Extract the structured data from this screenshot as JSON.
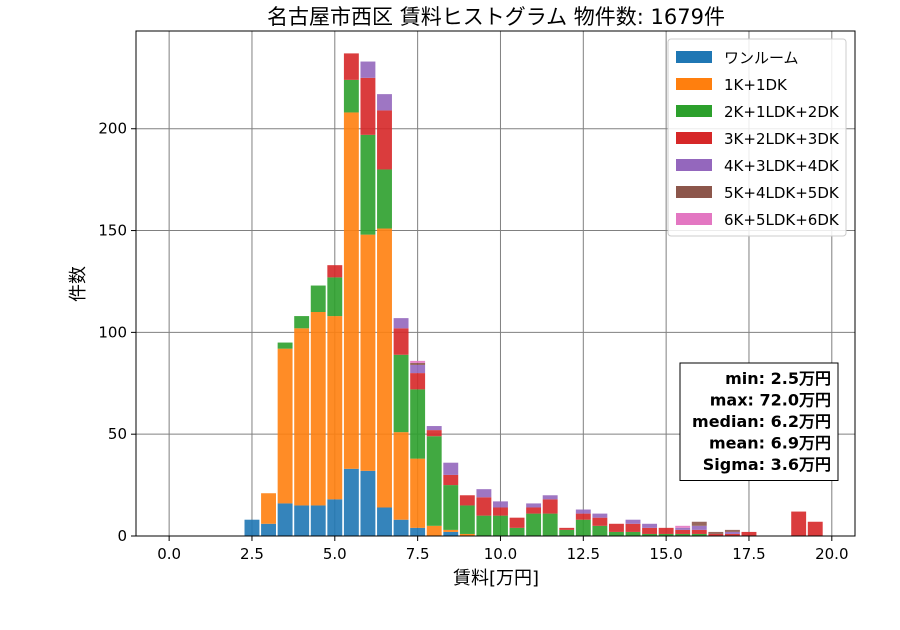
{
  "chart_data": {
    "type": "bar",
    "stacked": true,
    "title": "名古屋市西区 賃料ヒストグラム 物件数: 1679件",
    "xlabel": "賃料[万円]",
    "ylabel": "件数",
    "xlim": [
      -1.0,
      20.7
    ],
    "ylim": [
      0,
      248
    ],
    "xticks": [
      0.0,
      2.5,
      5.0,
      7.5,
      10.0,
      12.5,
      15.0,
      17.5,
      20.0
    ],
    "xtick_labels": [
      "0.0",
      "2.5",
      "5.0",
      "7.5",
      "10.0",
      "12.5",
      "15.0",
      "17.5",
      "20.0"
    ],
    "yticks": [
      0,
      50,
      100,
      150,
      200
    ],
    "ytick_labels": [
      "0",
      "50",
      "100",
      "150",
      "200"
    ],
    "grid": true,
    "legend_position": "top-right",
    "bin_width": 0.5,
    "x": [
      2.5,
      3.0,
      3.5,
      4.0,
      4.5,
      5.0,
      5.5,
      6.0,
      6.5,
      7.0,
      7.5,
      8.0,
      8.5,
      9.0,
      9.5,
      10.0,
      10.5,
      11.0,
      11.5,
      12.0,
      12.5,
      13.0,
      13.5,
      14.0,
      14.5,
      15.0,
      15.5,
      16.0,
      16.5,
      17.0,
      17.5,
      18.0,
      18.5,
      19.0,
      19.5
    ],
    "series": [
      {
        "name": "ワンルーム",
        "color": "#1f77b4",
        "values": [
          8,
          6,
          16,
          15,
          15,
          18,
          33,
          32,
          14,
          8,
          4,
          0,
          2,
          0,
          0,
          0,
          0,
          0,
          0,
          0,
          0,
          0,
          0,
          0,
          0,
          0,
          0,
          0,
          0,
          0,
          0,
          0,
          0,
          0,
          0
        ]
      },
      {
        "name": "1K+1DK",
        "color": "#ff7f0e",
        "values": [
          0,
          15,
          76,
          87,
          95,
          90,
          175,
          116,
          137,
          43,
          34,
          5,
          1,
          1,
          0,
          0,
          0,
          0,
          0,
          0,
          0,
          0,
          0,
          0,
          0,
          0,
          0,
          0,
          0,
          0,
          0,
          0,
          0,
          0,
          0
        ]
      },
      {
        "name": "2K+1LDK+2DK",
        "color": "#2ca02c",
        "values": [
          0,
          0,
          3,
          6,
          13,
          19,
          16,
          49,
          29,
          38,
          34,
          44,
          22,
          14,
          10,
          10,
          4,
          11,
          11,
          3,
          8,
          5,
          2,
          2,
          1,
          1,
          1,
          1,
          0,
          0,
          0,
          0,
          0,
          0,
          0
        ]
      },
      {
        "name": "3K+2LDK+3DK",
        "color": "#d62728",
        "values": [
          0,
          0,
          0,
          0,
          0,
          6,
          13,
          28,
          29,
          13,
          8,
          3,
          5,
          5,
          9,
          4,
          5,
          3,
          7,
          1,
          3,
          4,
          4,
          4,
          3,
          3,
          2,
          2,
          1,
          1,
          2,
          0,
          0,
          12,
          7
        ]
      },
      {
        "name": "4K+3LDK+4DK",
        "color": "#9467bd",
        "values": [
          0,
          0,
          0,
          0,
          0,
          0,
          0,
          8,
          8,
          5,
          4,
          2,
          6,
          0,
          4,
          3,
          0,
          2,
          2,
          0,
          2,
          2,
          0,
          2,
          2,
          0,
          1,
          2,
          0,
          1,
          0,
          0,
          0,
          0,
          0
        ]
      },
      {
        "name": "5K+4LDK+5DK",
        "color": "#8c564b",
        "values": [
          0,
          0,
          0,
          0,
          0,
          0,
          0,
          0,
          0,
          0,
          1,
          0,
          0,
          0,
          0,
          0,
          0,
          0,
          0,
          0,
          0,
          0,
          0,
          0,
          0,
          0,
          0,
          2,
          1,
          1,
          0,
          0,
          0,
          0,
          0
        ]
      },
      {
        "name": "6K+5LDK+6DK",
        "color": "#e377c2",
        "values": [
          0,
          0,
          0,
          0,
          0,
          0,
          0,
          0,
          0,
          0,
          1,
          0,
          0,
          0,
          0,
          0,
          0,
          0,
          0,
          0,
          0,
          0,
          0,
          0,
          0,
          0,
          1,
          0,
          0,
          0,
          0,
          0,
          0,
          0,
          0
        ]
      }
    ],
    "annotation": {
      "position": "right",
      "lines": [
        "min: 2.5万円",
        "max: 72.0万円",
        "median: 6.2万円",
        "mean: 6.9万円",
        "Sigma: 3.6万円"
      ]
    }
  }
}
